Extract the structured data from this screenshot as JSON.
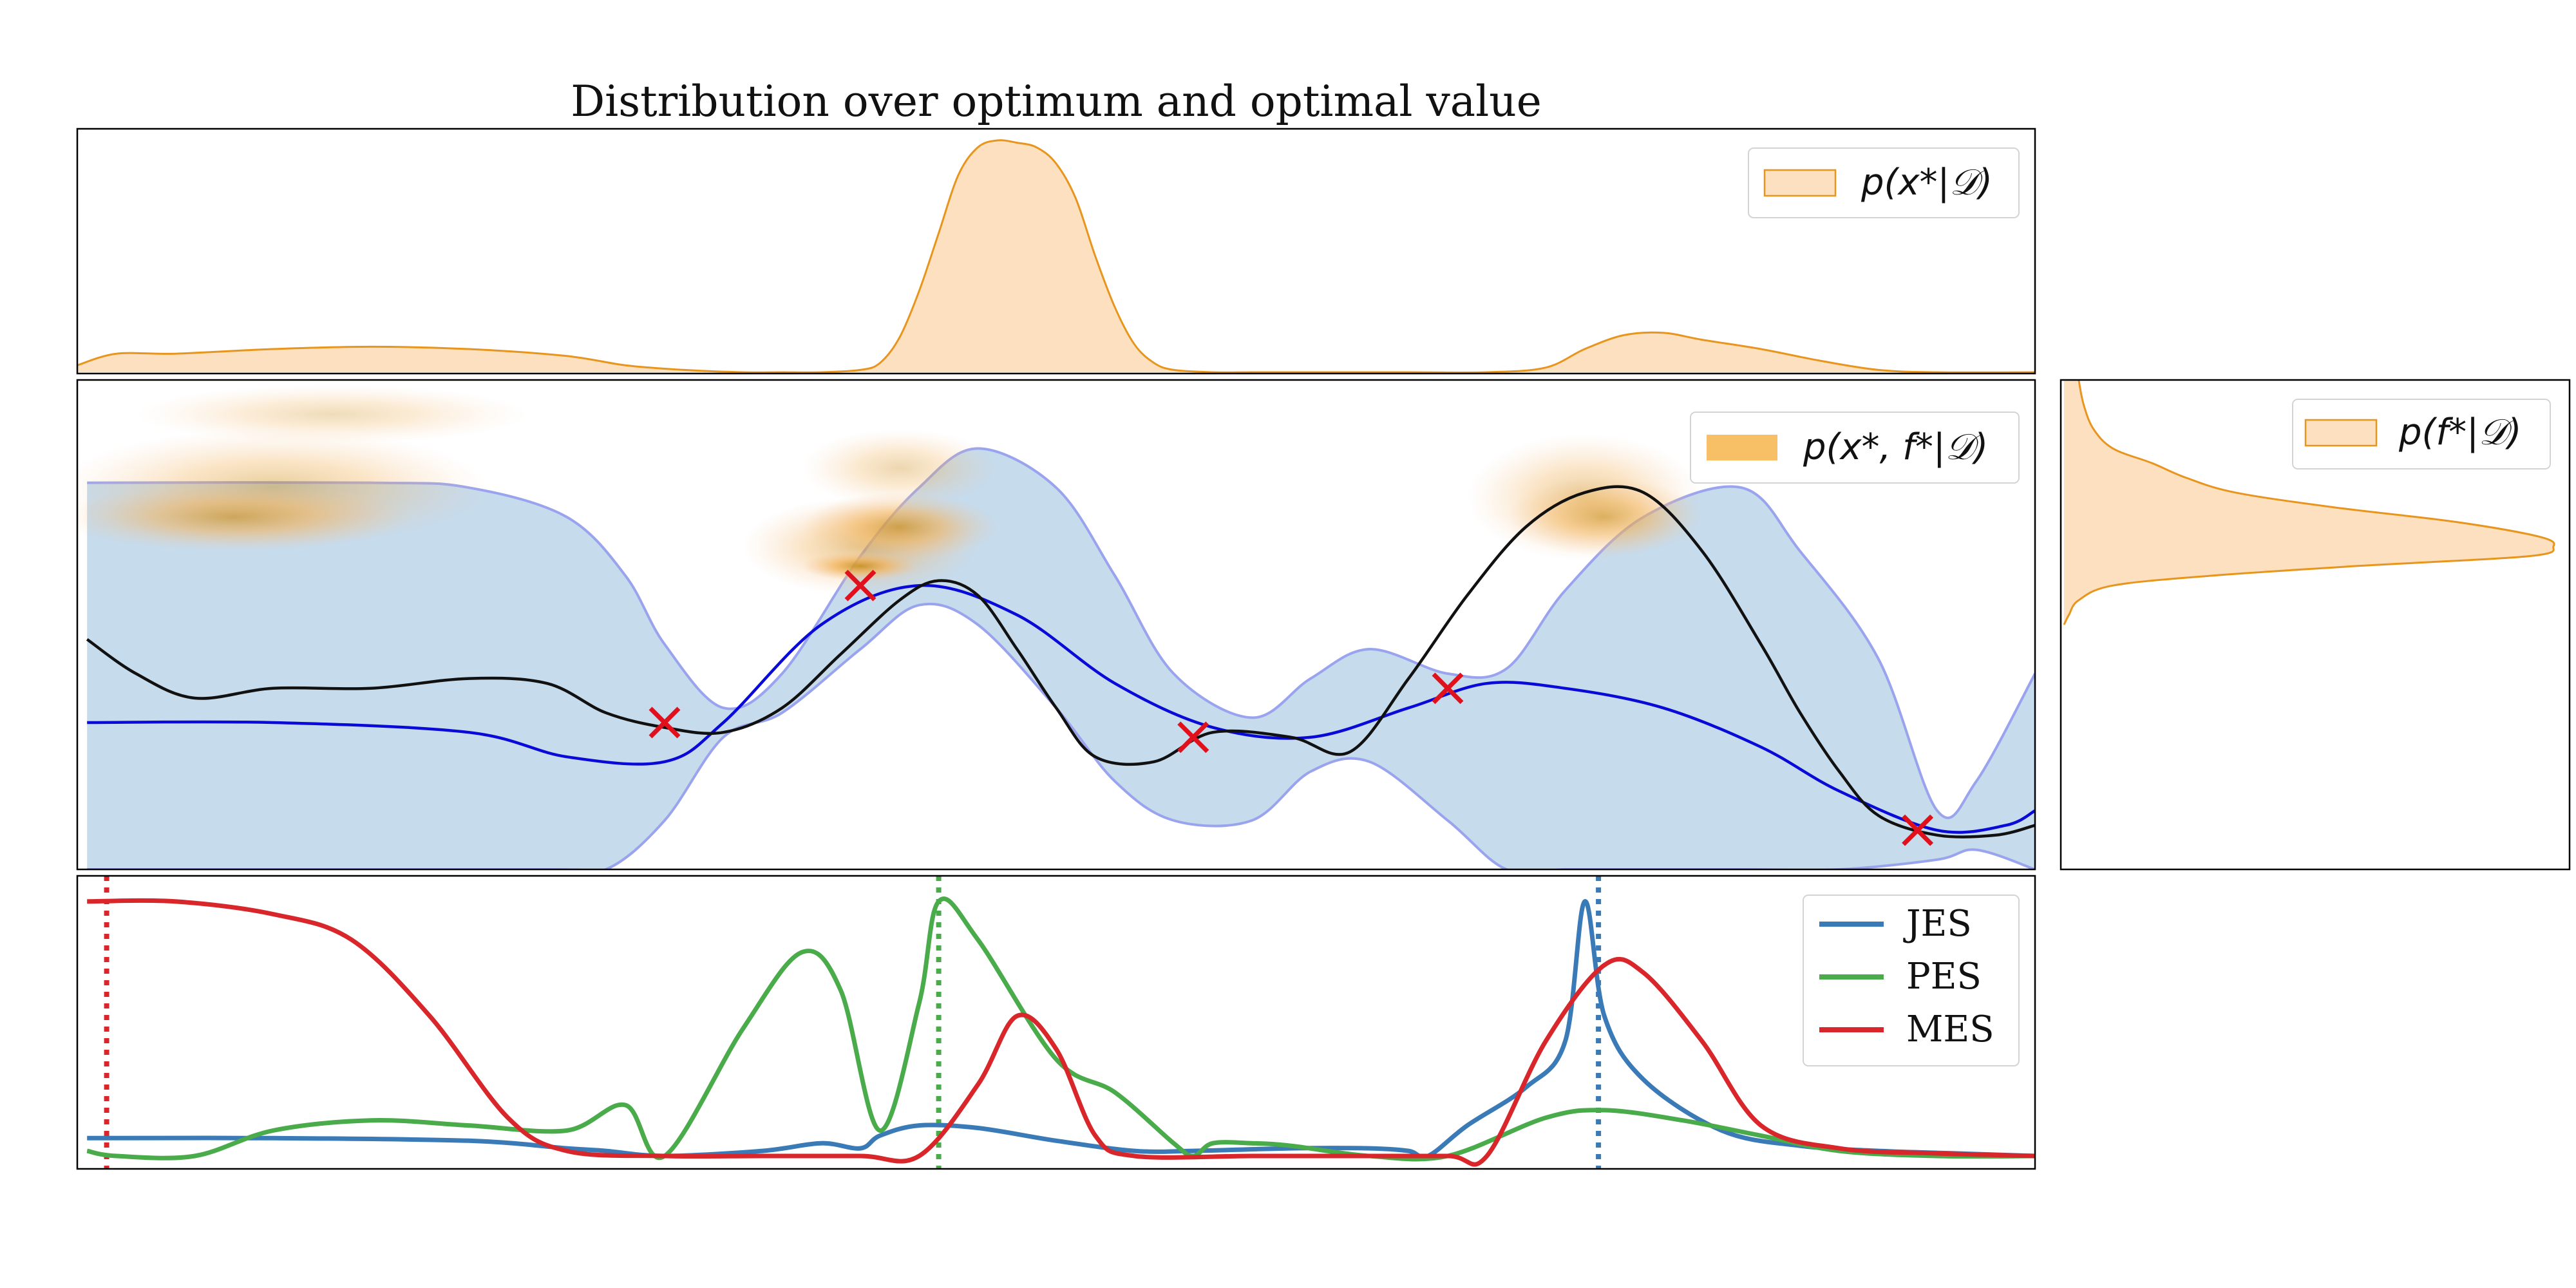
{
  "title": "Distribution over optimum and optimal value",
  "colors": {
    "orange_edge": "#e8951d",
    "orange_fill": "#fde0bf",
    "orange_joint": "#f7b955",
    "band_fill": "#c6dbec",
    "band_edge": "#9aa4ee",
    "mean": "#0a0ad8",
    "truth": "#111111",
    "observation": "#e0101c",
    "jes": "#3a7bb7",
    "pes": "#4aab4a",
    "mes": "#d8262a"
  },
  "legends": {
    "px": "p(x*|𝒟)",
    "joint": "p(x*, f*|𝒟)",
    "pf": "p(f*|𝒟)"
  },
  "chart_data": [
    {
      "type": "area",
      "name": "top-marginal",
      "xlim": [
        0,
        1
      ],
      "series": [
        {
          "name": "p(x*|𝒟)",
          "x": [
            0,
            0.02,
            0.05,
            0.1,
            0.15,
            0.2,
            0.25,
            0.28,
            0.31,
            0.34,
            0.36,
            0.38,
            0.4,
            0.41,
            0.42,
            0.43,
            0.44,
            0.45,
            0.46,
            0.47,
            0.48,
            0.49,
            0.5,
            0.51,
            0.52,
            0.53,
            0.54,
            0.55,
            0.56,
            0.58,
            0.6,
            0.62,
            0.68,
            0.72,
            0.75,
            0.77,
            0.79,
            0.81,
            0.83,
            0.86,
            0.89,
            0.92,
            0.95,
            1.0
          ],
          "values": [
            0.03,
            0.08,
            0.08,
            0.1,
            0.11,
            0.1,
            0.07,
            0.03,
            0.01,
            0.0,
            0.0,
            0.0,
            0.01,
            0.04,
            0.15,
            0.35,
            0.6,
            0.85,
            0.97,
            1.0,
            0.99,
            0.97,
            0.9,
            0.75,
            0.5,
            0.28,
            0.12,
            0.04,
            0.01,
            0.0,
            0.0,
            0.0,
            0.0,
            0.0,
            0.02,
            0.1,
            0.16,
            0.17,
            0.14,
            0.1,
            0.05,
            0.01,
            0.0,
            0.0
          ]
        }
      ]
    },
    {
      "type": "line",
      "name": "main-posterior",
      "xlim": [
        0,
        1
      ],
      "ylim": [
        0,
        1
      ],
      "series": [
        {
          "name": "mean",
          "x": [
            0.005,
            0.1,
            0.2,
            0.25,
            0.3,
            0.33,
            0.38,
            0.43,
            0.48,
            0.53,
            0.58,
            0.63,
            0.68,
            0.72,
            0.76,
            0.81,
            0.86,
            0.9,
            0.95,
            0.985,
            1.0
          ],
          "values": [
            0.3,
            0.3,
            0.28,
            0.23,
            0.22,
            0.3,
            0.5,
            0.58,
            0.52,
            0.38,
            0.29,
            0.27,
            0.33,
            0.38,
            0.37,
            0.33,
            0.25,
            0.16,
            0.08,
            0.09,
            0.12
          ]
        },
        {
          "name": "upper",
          "x": [
            0.005,
            0.15,
            0.2,
            0.25,
            0.28,
            0.3,
            0.33,
            0.36,
            0.4,
            0.43,
            0.46,
            0.5,
            0.53,
            0.56,
            0.6,
            0.63,
            0.66,
            0.7,
            0.73,
            0.76,
            0.8,
            0.85,
            0.88,
            0.92,
            0.95,
            0.97,
            1.0
          ],
          "values": [
            0.79,
            0.79,
            0.78,
            0.72,
            0.6,
            0.46,
            0.33,
            0.4,
            0.64,
            0.78,
            0.86,
            0.78,
            0.6,
            0.4,
            0.31,
            0.39,
            0.45,
            0.4,
            0.41,
            0.57,
            0.72,
            0.78,
            0.65,
            0.43,
            0.12,
            0.18,
            0.4
          ]
        },
        {
          "name": "lower",
          "x": [
            0.005,
            0.24,
            0.27,
            0.3,
            0.33,
            0.36,
            0.4,
            0.43,
            0.46,
            0.5,
            0.53,
            0.56,
            0.6,
            0.63,
            0.66,
            0.7,
            0.73,
            0.76,
            0.8,
            0.85,
            0.9,
            0.95,
            0.97,
            1.0
          ],
          "values": [
            0.0,
            0.0,
            0.0,
            0.1,
            0.27,
            0.32,
            0.45,
            0.54,
            0.5,
            0.33,
            0.18,
            0.1,
            0.1,
            0.2,
            0.22,
            0.1,
            0.0,
            0.0,
            0.0,
            0.0,
            0.0,
            0.02,
            0.04,
            0.0
          ]
        },
        {
          "name": "truth",
          "x": [
            0.005,
            0.03,
            0.06,
            0.1,
            0.15,
            0.2,
            0.24,
            0.27,
            0.3,
            0.33,
            0.36,
            0.39,
            0.42,
            0.44,
            0.46,
            0.48,
            0.5,
            0.52,
            0.55,
            0.58,
            0.62,
            0.65,
            0.68,
            0.71,
            0.74,
            0.77,
            0.8,
            0.83,
            0.86,
            0.88,
            0.9,
            0.92,
            0.95,
            0.98,
            1.0
          ],
          "values": [
            0.47,
            0.4,
            0.35,
            0.37,
            0.37,
            0.39,
            0.38,
            0.32,
            0.29,
            0.28,
            0.33,
            0.44,
            0.55,
            0.59,
            0.56,
            0.45,
            0.33,
            0.23,
            0.22,
            0.28,
            0.27,
            0.24,
            0.39,
            0.56,
            0.7,
            0.77,
            0.77,
            0.65,
            0.46,
            0.32,
            0.2,
            0.11,
            0.07,
            0.07,
            0.09
          ]
        }
      ],
      "observations": {
        "x": [
          0.3,
          0.4,
          0.57,
          0.7,
          0.94
        ],
        "values": [
          0.3,
          0.58,
          0.27,
          0.37,
          0.08
        ]
      },
      "joint_density": [
        {
          "cx": 0.1,
          "cy": 0.78,
          "rx": 0.11,
          "ry": 0.12,
          "level": 0.5
        },
        {
          "cx": 0.08,
          "cy": 0.72,
          "rx": 0.09,
          "ry": 0.07,
          "level": 0.7
        },
        {
          "cx": 0.13,
          "cy": 0.93,
          "rx": 0.1,
          "ry": 0.06,
          "level": 0.35
        },
        {
          "cx": 0.4,
          "cy": 0.66,
          "rx": 0.06,
          "ry": 0.1,
          "level": 0.55
        },
        {
          "cx": 0.42,
          "cy": 0.7,
          "rx": 0.05,
          "ry": 0.07,
          "level": 0.8
        },
        {
          "cx": 0.4,
          "cy": 0.62,
          "rx": 0.03,
          "ry": 0.03,
          "level": 1.0
        },
        {
          "cx": 0.42,
          "cy": 0.82,
          "rx": 0.05,
          "ry": 0.08,
          "level": 0.4
        },
        {
          "cx": 0.77,
          "cy": 0.76,
          "rx": 0.06,
          "ry": 0.13,
          "level": 0.5
        },
        {
          "cx": 0.78,
          "cy": 0.72,
          "rx": 0.05,
          "ry": 0.08,
          "level": 0.65
        }
      ]
    },
    {
      "type": "area",
      "name": "side-marginal",
      "ylim": [
        0,
        1
      ],
      "series": [
        {
          "name": "p(f*|𝒟)",
          "y": [
            1.0,
            0.95,
            0.9,
            0.86,
            0.83,
            0.8,
            0.77,
            0.74,
            0.71,
            0.68,
            0.66,
            0.64,
            0.62,
            0.6,
            0.58,
            0.55,
            0.52,
            0.5
          ],
          "values": [
            0.03,
            0.04,
            0.06,
            0.1,
            0.18,
            0.25,
            0.35,
            0.55,
            0.8,
            0.97,
            1.0,
            0.95,
            0.6,
            0.3,
            0.1,
            0.03,
            0.01,
            0.0
          ]
        }
      ]
    },
    {
      "type": "line",
      "name": "acquisition",
      "xlim": [
        0,
        1
      ],
      "ylim": [
        0,
        1.05
      ],
      "series": [
        {
          "name": "JES",
          "x": [
            0.005,
            0.1,
            0.2,
            0.25,
            0.27,
            0.3,
            0.35,
            0.38,
            0.4,
            0.41,
            0.43,
            0.46,
            0.5,
            0.54,
            0.57,
            0.62,
            0.66,
            0.68,
            0.69,
            0.71,
            0.74,
            0.76,
            0.77,
            0.78,
            0.8,
            0.84,
            0.88,
            0.92,
            0.96,
            1.0
          ],
          "values": [
            0.07,
            0.07,
            0.06,
            0.03,
            0.02,
            0.0,
            0.02,
            0.05,
            0.03,
            0.08,
            0.12,
            0.11,
            0.06,
            0.02,
            0.02,
            0.03,
            0.03,
            0.02,
            0.0,
            0.12,
            0.27,
            0.45,
            1.0,
            0.55,
            0.3,
            0.1,
            0.04,
            0.02,
            0.01,
            0.0
          ]
        },
        {
          "name": "PES",
          "x": [
            0.005,
            0.02,
            0.06,
            0.1,
            0.15,
            0.2,
            0.25,
            0.28,
            0.3,
            0.34,
            0.37,
            0.39,
            0.41,
            0.43,
            0.44,
            0.46,
            0.5,
            0.53,
            0.56,
            0.57,
            0.58,
            0.6,
            0.62,
            0.66,
            0.7,
            0.75,
            0.78,
            0.82,
            0.86,
            0.9,
            0.95,
            1.0
          ],
          "values": [
            0.02,
            0.0,
            0.0,
            0.1,
            0.14,
            0.12,
            0.1,
            0.2,
            0.0,
            0.5,
            0.8,
            0.65,
            0.1,
            0.6,
            1.0,
            0.85,
            0.38,
            0.25,
            0.05,
            0.0,
            0.05,
            0.05,
            0.04,
            0.0,
            0.0,
            0.15,
            0.18,
            0.14,
            0.08,
            0.02,
            0.0,
            0.0
          ]
        },
        {
          "name": "MES",
          "x": [
            0.005,
            0.05,
            0.1,
            0.14,
            0.18,
            0.22,
            0.25,
            0.3,
            0.35,
            0.4,
            0.43,
            0.46,
            0.48,
            0.5,
            0.52,
            0.54,
            0.6,
            0.65,
            0.7,
            0.72,
            0.75,
            0.78,
            0.8,
            0.83,
            0.86,
            0.9,
            0.95,
            1.0
          ],
          "values": [
            1.0,
            1.0,
            0.95,
            0.85,
            0.55,
            0.15,
            0.02,
            0.0,
            0.0,
            0.0,
            0.0,
            0.28,
            0.55,
            0.42,
            0.08,
            0.0,
            0.0,
            0.0,
            0.0,
            0.0,
            0.45,
            0.75,
            0.72,
            0.45,
            0.12,
            0.03,
            0.01,
            0.0
          ]
        }
      ],
      "argmax_lines": [
        {
          "series": "MES",
          "x": 0.015
        },
        {
          "series": "PES",
          "x": 0.44
        },
        {
          "series": "JES",
          "x": 0.777
        }
      ]
    }
  ]
}
